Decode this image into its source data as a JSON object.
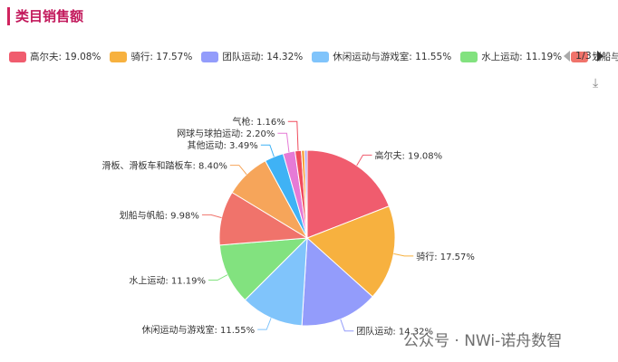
{
  "title": "类目销售额",
  "legend": {
    "items": [
      {
        "label": "高尔夫: 19.08%",
        "color": "#f05c6e"
      },
      {
        "label": "骑行: 17.57%",
        "color": "#f7b13f"
      },
      {
        "label": "团队运动: 14.32%",
        "color": "#939cfb"
      },
      {
        "label": "休闲运动与游戏室: 11.55%",
        "color": "#80c4fb"
      },
      {
        "label": "水上运动: 11.19%",
        "color": "#82e27f"
      },
      {
        "label": "划船与帆船:",
        "color": "#f0736b"
      }
    ],
    "page": "1/3"
  },
  "download_icon": "download-icon",
  "watermark": "公众号 · NWi-诺舟数智",
  "chart_data": {
    "type": "pie",
    "title": "类目销售额",
    "legend_position": "top",
    "slices": [
      {
        "name": "高尔夫",
        "value": 19.08,
        "label": "高尔夫: 19.08%",
        "color": "#f05c6e"
      },
      {
        "name": "骑行",
        "value": 17.57,
        "label": "骑行: 17.57%",
        "color": "#f7b13f"
      },
      {
        "name": "团队运动",
        "value": 14.32,
        "label": "团队运动: 14.32%",
        "color": "#939cfb"
      },
      {
        "name": "休闲运动与游戏室",
        "value": 11.55,
        "label": "休闲运动与游戏室: 11.55%",
        "color": "#80c4fb"
      },
      {
        "name": "水上运动",
        "value": 11.19,
        "label": "水上运动: 11.19%",
        "color": "#82e27f"
      },
      {
        "name": "划船与帆船",
        "value": 9.98,
        "label": "划船与帆船: 9.98%",
        "color": "#f0736b"
      },
      {
        "name": "滑板、滑板车和踏板车",
        "value": 8.4,
        "label": "滑板、滑板车和踏板车: 8.40%",
        "color": "#f6a55a"
      },
      {
        "name": "其他运动",
        "value": 3.49,
        "label": "其他运动: 3.49%",
        "color": "#3fb2f5"
      },
      {
        "name": "网球与球拍运动",
        "value": 2.2,
        "label": "网球与球拍运动: 2.20%",
        "color": "#e67ad6"
      },
      {
        "name": "气枪",
        "value": 1.16,
        "label": "气枪: 1.16%",
        "color": "#f04b5c"
      },
      {
        "name": "",
        "value": 0.6,
        "label": "",
        "color": "#f7a13c"
      },
      {
        "name": "",
        "value": 0.46,
        "label": "",
        "color": "#a89cf5"
      }
    ]
  }
}
